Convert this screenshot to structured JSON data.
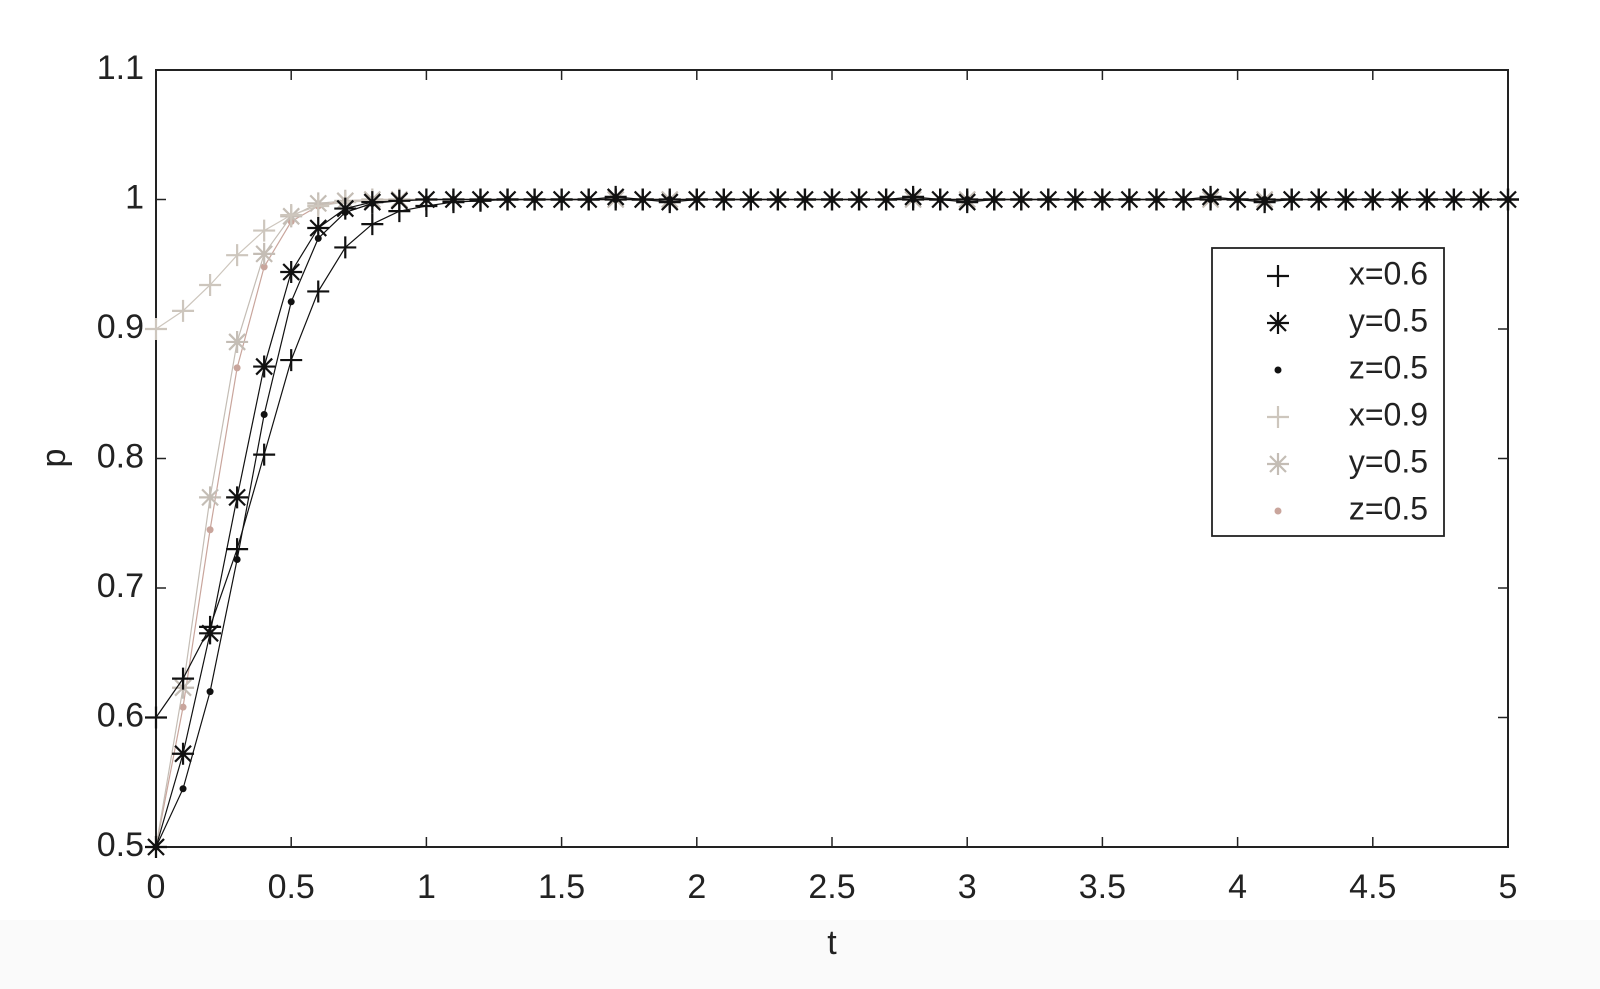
{
  "chart_data": {
    "type": "line",
    "xlabel": "t",
    "ylabel": "p",
    "xlim": [
      0,
      5
    ],
    "ylim": [
      0.5,
      1.1
    ],
    "xticks": [
      0,
      0.5,
      1,
      1.5,
      2,
      2.5,
      3,
      3.5,
      4,
      4.5,
      5
    ],
    "yticks": [
      0.5,
      0.6,
      0.7,
      0.8,
      0.9,
      1,
      1.1
    ],
    "grid": false,
    "legend": "right",
    "x": [
      0,
      0.1,
      0.2,
      0.3,
      0.4,
      0.5,
      0.6,
      0.7,
      0.8,
      0.9,
      1,
      1.1,
      1.2,
      1.3,
      1.4,
      1.5,
      1.6,
      1.7,
      1.8,
      1.9,
      2,
      2.1,
      2.2,
      2.3,
      2.4,
      2.5,
      2.6,
      2.7,
      2.8,
      2.9,
      3,
      3.1,
      3.2,
      3.3,
      3.4,
      3.5,
      3.6,
      3.7,
      3.8,
      3.9,
      4,
      4.1,
      4.2,
      4.3,
      4.4,
      4.5,
      4.6,
      4.7,
      4.8,
      4.9,
      5
    ],
    "series": [
      {
        "name": "x=0.6",
        "color": "#111111",
        "marker": "plus",
        "values": [
          0.6,
          0.63,
          0.67,
          0.73,
          0.803,
          0.876,
          0.929,
          0.963,
          0.981,
          0.991,
          0.995,
          0.998,
          0.999,
          1,
          1,
          1,
          1,
          1,
          1,
          1,
          1,
          1,
          1,
          1,
          1,
          1,
          1,
          1,
          1,
          1,
          1,
          1,
          1,
          1,
          1,
          1,
          1,
          1,
          1,
          1,
          1,
          1,
          1,
          1,
          1,
          1,
          1,
          1,
          1,
          1,
          1
        ]
      },
      {
        "name": "y=0.5",
        "color": "#111111",
        "marker": "star",
        "values": [
          0.5,
          0.572,
          0.665,
          0.77,
          0.871,
          0.944,
          0.978,
          0.993,
          0.998,
          0.999,
          1,
          1,
          1,
          1,
          1,
          1,
          1,
          1.002,
          1,
          0.998,
          1,
          1,
          1,
          1,
          1,
          1,
          1,
          1,
          1.002,
          1,
          0.998,
          1,
          1,
          1,
          1,
          1,
          1,
          1,
          1,
          1.002,
          1,
          0.998,
          1,
          1,
          1,
          1,
          1,
          1,
          1,
          1,
          1
        ]
      },
      {
        "name": "z=0.5",
        "color": "#111111",
        "marker": "dot",
        "values": [
          0.5,
          0.545,
          0.62,
          0.722,
          0.834,
          0.921,
          0.97,
          0.99,
          0.997,
          0.999,
          1,
          1,
          1,
          1,
          1,
          1,
          1,
          1,
          1,
          1,
          1,
          1,
          1,
          1,
          1,
          1,
          1,
          1,
          1,
          1,
          1,
          1,
          1,
          1,
          1,
          1,
          1,
          1,
          1,
          1,
          1,
          1,
          1,
          1,
          1,
          1,
          1,
          1,
          1,
          1,
          1
        ]
      },
      {
        "name": "x=0.9",
        "color": "#cdc6bd",
        "marker": "plus",
        "values": [
          0.9,
          0.914,
          0.934,
          0.957,
          0.976,
          0.988,
          0.995,
          0.998,
          0.999,
          1,
          1,
          1,
          1,
          1,
          1,
          1,
          1,
          1,
          1,
          1,
          1,
          1,
          1,
          1,
          1,
          1,
          1,
          1,
          1,
          1,
          1,
          1,
          1,
          1,
          1,
          1,
          1,
          1,
          1,
          1,
          1,
          1,
          1,
          1,
          1,
          1,
          1,
          1,
          1,
          1,
          1
        ]
      },
      {
        "name": "y=0.5",
        "color": "#c4bdb5",
        "marker": "star",
        "values": [
          0.5,
          0.623,
          0.77,
          0.89,
          0.958,
          0.987,
          0.997,
          0.999,
          1,
          1,
          1,
          1,
          1,
          1,
          1,
          1,
          1,
          1,
          1,
          1,
          1,
          1,
          1,
          1,
          1,
          1,
          1,
          1,
          1,
          1,
          1,
          1,
          1,
          1,
          1,
          1,
          1,
          1,
          1,
          1,
          1,
          1,
          1,
          1,
          1,
          1,
          1,
          1,
          1,
          1,
          1
        ]
      },
      {
        "name": "z=0.5",
        "color": "#c9a59c",
        "marker": "dot",
        "values": [
          0.5,
          0.608,
          0.745,
          0.87,
          0.948,
          0.983,
          0.995,
          0.999,
          1,
          1,
          1,
          1,
          1,
          1,
          1,
          1,
          1,
          1,
          1,
          1,
          1,
          1,
          1,
          1,
          1,
          1,
          1,
          1,
          1,
          1,
          1,
          1,
          1,
          1,
          1,
          1,
          1,
          1,
          1,
          1,
          1,
          1,
          1,
          1,
          1,
          1,
          1,
          1,
          1,
          1,
          1
        ]
      }
    ]
  }
}
